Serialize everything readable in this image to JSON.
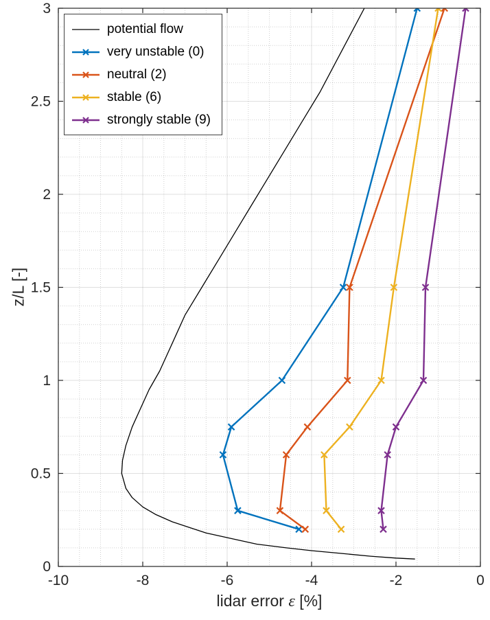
{
  "figure": {
    "background": "#ffffff",
    "axis_color": "#262626"
  },
  "chart_data": {
    "type": "line",
    "title": "",
    "xlabel_parts": [
      "lidar error ",
      "ε",
      " [%]"
    ],
    "ylabel": "z/L [-]",
    "xlim": [
      -10,
      0
    ],
    "ylim": [
      0,
      3
    ],
    "xticks": [
      -10,
      -8,
      -6,
      -4,
      -2,
      0
    ],
    "xtick_labels": [
      "-10",
      "-8",
      "-6",
      "-4",
      "-2",
      "0"
    ],
    "yticks": [
      0,
      0.5,
      1,
      1.5,
      2,
      2.5,
      3
    ],
    "ytick_labels": [
      "0",
      "0.5",
      "1",
      "1.5",
      "2",
      "2.5",
      "3"
    ],
    "x_minor_step": 0.5,
    "y_minor_step": 0.1,
    "grid": true,
    "minor_grid": true,
    "legend_position": "top-left",
    "series": [
      {
        "name": "potential flow",
        "color": "#000000",
        "marker": "none",
        "line_width": 1.3,
        "points": [
          [
            -1.55,
            0.04
          ],
          [
            -2.0,
            0.045
          ],
          [
            -2.6,
            0.055
          ],
          [
            -3.3,
            0.07
          ],
          [
            -4.0,
            0.085
          ],
          [
            -4.6,
            0.1
          ],
          [
            -5.3,
            0.12
          ],
          [
            -5.9,
            0.15
          ],
          [
            -6.5,
            0.18
          ],
          [
            -6.9,
            0.21
          ],
          [
            -7.3,
            0.24
          ],
          [
            -7.7,
            0.28
          ],
          [
            -8.0,
            0.32
          ],
          [
            -8.25,
            0.37
          ],
          [
            -8.4,
            0.42
          ],
          [
            -8.5,
            0.5
          ],
          [
            -8.48,
            0.57
          ],
          [
            -8.4,
            0.65
          ],
          [
            -8.25,
            0.75
          ],
          [
            -8.05,
            0.85
          ],
          [
            -7.85,
            0.95
          ],
          [
            -7.6,
            1.05
          ],
          [
            -7.3,
            1.2
          ],
          [
            -7.0,
            1.35
          ],
          [
            -6.6,
            1.5
          ],
          [
            -6.2,
            1.65
          ],
          [
            -5.8,
            1.8
          ],
          [
            -5.4,
            1.95
          ],
          [
            -5.0,
            2.1
          ],
          [
            -4.6,
            2.25
          ],
          [
            -4.2,
            2.4
          ],
          [
            -3.8,
            2.55
          ],
          [
            -3.45,
            2.7
          ],
          [
            -3.1,
            2.85
          ],
          [
            -2.75,
            3.0
          ]
        ]
      },
      {
        "name": "very unstable (0)",
        "color": "#0072BD",
        "marker": "x",
        "line_width": 2.4,
        "points": [
          [
            -4.3,
            0.2
          ],
          [
            -5.75,
            0.3
          ],
          [
            -6.1,
            0.6
          ],
          [
            -5.9,
            0.75
          ],
          [
            -4.7,
            1.0
          ],
          [
            -3.25,
            1.5
          ],
          [
            -1.5,
            3.0
          ]
        ]
      },
      {
        "name": "neutral (2)",
        "color": "#D95319",
        "marker": "x",
        "line_width": 2.4,
        "points": [
          [
            -4.15,
            0.2
          ],
          [
            -4.75,
            0.3
          ],
          [
            -4.6,
            0.6
          ],
          [
            -4.1,
            0.75
          ],
          [
            -3.15,
            1.0
          ],
          [
            -3.1,
            1.5
          ],
          [
            -0.85,
            3.0
          ]
        ]
      },
      {
        "name": "stable (6)",
        "color": "#EDB120",
        "marker": "x",
        "line_width": 2.4,
        "points": [
          [
            -3.3,
            0.2
          ],
          [
            -3.65,
            0.3
          ],
          [
            -3.7,
            0.6
          ],
          [
            -3.1,
            0.75
          ],
          [
            -2.35,
            1.0
          ],
          [
            -2.05,
            1.5
          ],
          [
            -1.0,
            3.0
          ]
        ]
      },
      {
        "name": "strongly stable (9)",
        "color": "#7E2F8E",
        "marker": "x",
        "line_width": 2.4,
        "points": [
          [
            -2.3,
            0.2
          ],
          [
            -2.35,
            0.3
          ],
          [
            -2.2,
            0.6
          ],
          [
            -2.0,
            0.75
          ],
          [
            -1.35,
            1.0
          ],
          [
            -1.3,
            1.5
          ],
          [
            -0.35,
            3.0
          ]
        ]
      }
    ]
  }
}
